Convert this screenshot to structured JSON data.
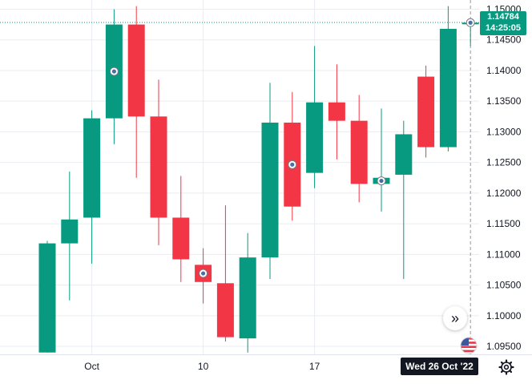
{
  "chart_data": {
    "type": "candlestick",
    "symbol_hint": "EURUSD-like",
    "ylim": [
      1.0937,
      1.1515
    ],
    "y_ticks": [
      "1.15000",
      "1.14500",
      "1.14000",
      "1.13500",
      "1.13000",
      "1.12500",
      "1.12000",
      "1.11500",
      "1.11000",
      "1.10500",
      "1.10000",
      "1.09500"
    ],
    "x_ticks": [
      {
        "label": "Oct",
        "index": 2.0
      },
      {
        "label": "10",
        "index": 7.0
      },
      {
        "label": "17",
        "index": 12.0
      }
    ],
    "candles": [
      {
        "o": 1.094,
        "h": 1.1122,
        "l": 1.094,
        "c": 1.1118
      },
      {
        "o": 1.1118,
        "h": 1.1235,
        "l": 1.1025,
        "c": 1.1157
      },
      {
        "o": 1.116,
        "h": 1.1335,
        "l": 1.1085,
        "c": 1.1322
      },
      {
        "o": 1.1322,
        "h": 1.15,
        "l": 1.128,
        "c": 1.1475
      },
      {
        "o": 1.1475,
        "h": 1.1505,
        "l": 1.1225,
        "c": 1.1325
      },
      {
        "o": 1.1325,
        "h": 1.1385,
        "l": 1.1115,
        "c": 1.116
      },
      {
        "o": 1.116,
        "h": 1.1228,
        "l": 1.1055,
        "c": 1.1092
      },
      {
        "o": 1.1083,
        "h": 1.111,
        "l": 1.102,
        "c": 1.1055
      },
      {
        "o": 1.1053,
        "h": 1.118,
        "l": 1.0958,
        "c": 1.0965
      },
      {
        "o": 1.0963,
        "h": 1.1135,
        "l": 1.094,
        "c": 1.1095
      },
      {
        "o": 1.1095,
        "h": 1.138,
        "l": 1.106,
        "c": 1.1315
      },
      {
        "o": 1.1315,
        "h": 1.1365,
        "l": 1.1155,
        "c": 1.1178
      },
      {
        "o": 1.1233,
        "h": 1.144,
        "l": 1.1208,
        "c": 1.1348
      },
      {
        "o": 1.1348,
        "h": 1.141,
        "l": 1.1255,
        "c": 1.1318
      },
      {
        "o": 1.1318,
        "h": 1.136,
        "l": 1.1185,
        "c": 1.1215
      },
      {
        "o": 1.1215,
        "h": 1.1338,
        "l": 1.117,
        "c": 1.1225
      },
      {
        "o": 1.123,
        "h": 1.1318,
        "l": 1.106,
        "c": 1.1296
      },
      {
        "o": 1.139,
        "h": 1.1408,
        "l": 1.1258,
        "c": 1.1275
      },
      {
        "o": 1.1275,
        "h": 1.1505,
        "l": 1.1268,
        "c": 1.1468
      },
      {
        "o": 1.1478,
        "h": 1.1483,
        "l": 1.144,
        "c": 1.1478
      }
    ],
    "event_markers_on": [
      3,
      7,
      11,
      15,
      19
    ],
    "current_price": 1.14784,
    "colors": {
      "up": "#089981",
      "down": "#F23645",
      "grid": "#E9ECF2",
      "crosshair": "#9598A1"
    }
  },
  "ui": {
    "price_label": "1.14784",
    "countdown": "14:25:05",
    "date_label": "Wed 26 Oct '22",
    "scroll_icon": "double-chevron-right-icon",
    "flag_icon": "us-flag-icon",
    "settings_icon": "gear-icon"
  }
}
